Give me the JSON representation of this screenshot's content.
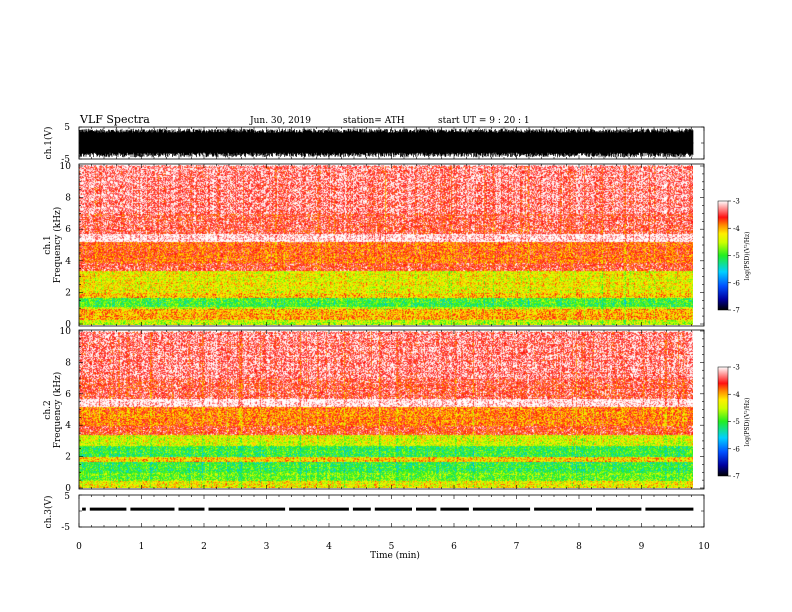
{
  "header": {
    "title": "VLF  Spectra",
    "date": "Jun. 30, 2019",
    "station": "station= ATH",
    "start_ut": "start  UT  =   9  : 20 : 1"
  },
  "panels": {
    "ch1_wave": {
      "ylabel": "ch.1(V)",
      "top_tick": "5",
      "bottom_tick": "-5"
    },
    "ch1_spec": {
      "ylabel_top": "ch.1",
      "ylabel_bottom": "Frequency  (kHz)"
    },
    "ch2_spec": {
      "ylabel_top": "ch.2",
      "ylabel_bottom": "Frequency  (kHz)"
    },
    "ch3_wave": {
      "ylabel": "ch.3(V)",
      "top_tick": "5",
      "bottom_tick": "-5"
    }
  },
  "colorbar": {
    "label": "log(PSD)(V²/Hz)",
    "ticks": [
      "-3",
      "-4",
      "-5",
      "-6",
      "-7"
    ],
    "stops": [
      "#ffffff",
      "#ff2a2a",
      "#ffee00",
      "#22ee22",
      "#00c8ff",
      "#0030ff",
      "#000000"
    ]
  },
  "chart_data": [
    {
      "type": "line",
      "name": "ch.1 waveform",
      "xlim": [
        0,
        10
      ],
      "ylim": [
        -5,
        5
      ],
      "x_data_end": 9.83,
      "description_of_values": "dense VLF signal filling approx -4.5 to 4.5 V"
    },
    {
      "type": "heatmap",
      "title": "ch.1",
      "xlabel": "Time  (min)",
      "ylabel": "Frequency  (kHz)",
      "xlim": [
        0,
        10
      ],
      "ylim": [
        0,
        10
      ],
      "x_ticks": [
        "0",
        "1",
        "2",
        "3",
        "4",
        "5",
        "6",
        "7",
        "8",
        "9",
        "10"
      ],
      "y_ticks": [
        "0",
        "2",
        "4",
        "6",
        "8",
        "10"
      ],
      "x_data_end": 9.83,
      "colorbar_range": [
        -7,
        -3
      ],
      "bands_khz": [
        {
          "from": 0.0,
          "to": 0.35,
          "log_psd": -4.5
        },
        {
          "from": 0.35,
          "to": 1.0,
          "log_psd": -4.0
        },
        {
          "from": 1.0,
          "to": 1.15,
          "log_psd": -4.5
        },
        {
          "from": 1.15,
          "to": 1.75,
          "log_psd": -4.95
        },
        {
          "from": 1.75,
          "to": 2.0,
          "log_psd": -4.1
        },
        {
          "from": 2.0,
          "to": 3.4,
          "log_psd": -4.3
        },
        {
          "from": 3.4,
          "to": 3.9,
          "log_psd": -3.5
        },
        {
          "from": 3.9,
          "to": 5.2,
          "log_psd": -3.75
        },
        {
          "from": 5.2,
          "to": 5.7,
          "log_psd": -3.0
        },
        {
          "from": 5.7,
          "to": 7.0,
          "log_psd": -3.45
        },
        {
          "from": 7.0,
          "to": 10.0,
          "log_psd": -3.3
        }
      ]
    },
    {
      "type": "heatmap",
      "title": "ch.2",
      "xlabel": "Time  (min)",
      "ylabel": "Frequency  (kHz)",
      "xlim": [
        0,
        10
      ],
      "ylim": [
        0,
        10
      ],
      "x_ticks": [
        "0",
        "1",
        "2",
        "3",
        "4",
        "5",
        "6",
        "7",
        "8",
        "9",
        "10"
      ],
      "y_ticks": [
        "0",
        "2",
        "4",
        "6",
        "8",
        "10"
      ],
      "x_data_end": 9.83,
      "colorbar_range": [
        -7,
        -3
      ],
      "bands_khz": [
        {
          "from": 0.0,
          "to": 0.5,
          "log_psd": -4.3
        },
        {
          "from": 0.5,
          "to": 1.0,
          "log_psd": -4.8
        },
        {
          "from": 1.0,
          "to": 1.7,
          "log_psd": -5.0
        },
        {
          "from": 1.7,
          "to": 2.0,
          "log_psd": -4.1
        },
        {
          "from": 2.0,
          "to": 2.7,
          "log_psd": -5.0
        },
        {
          "from": 2.7,
          "to": 3.4,
          "log_psd": -4.4
        },
        {
          "from": 3.4,
          "to": 4.0,
          "log_psd": -3.6
        },
        {
          "from": 4.0,
          "to": 5.2,
          "log_psd": -3.85
        },
        {
          "from": 5.2,
          "to": 5.7,
          "log_psd": -3.0
        },
        {
          "from": 5.7,
          "to": 7.0,
          "log_psd": -3.45
        },
        {
          "from": 7.0,
          "to": 10.0,
          "log_psd": -3.3
        }
      ]
    },
    {
      "type": "line",
      "name": "ch.3 waveform",
      "xlim": [
        0,
        10
      ],
      "ylim": [
        -5,
        5
      ],
      "x_data_end": 9.83,
      "level_v": 0.6,
      "gaps_min": [
        0.14,
        0.79,
        1.56,
        2.04,
        3.33,
        4.35,
        4.7,
        5.36,
        5.75,
        6.27,
        7.25,
        8.24,
        9.03
      ]
    }
  ]
}
